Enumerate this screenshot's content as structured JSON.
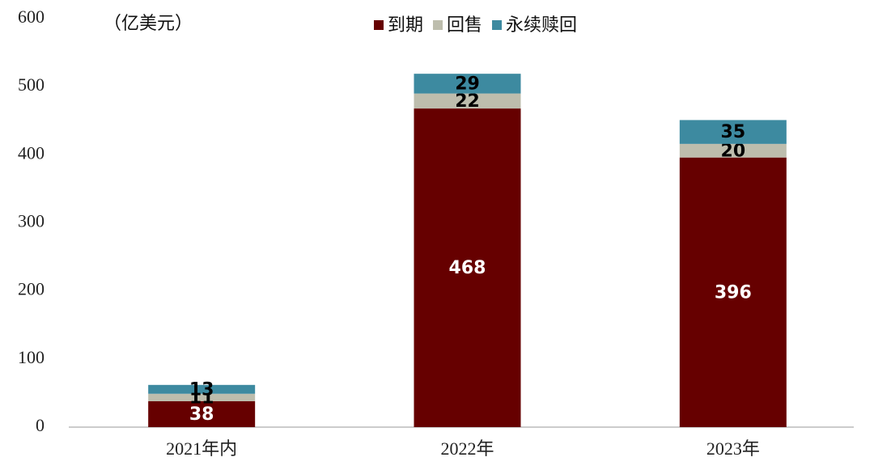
{
  "chart_data": {
    "type": "stacked-bar",
    "unit_label": "（亿美元）",
    "categories": [
      "2021年内",
      "2022年",
      "2023年"
    ],
    "series": [
      {
        "name": "到期",
        "color": "#660000",
        "values": [
          38,
          468,
          396
        ]
      },
      {
        "name": "回售",
        "color": "#bdbdad",
        "values": [
          11,
          22,
          20
        ]
      },
      {
        "name": "永续赎回",
        "color": "#3d8aa0",
        "values": [
          13,
          29,
          35
        ]
      }
    ],
    "ylim": [
      0,
      600
    ],
    "yticks": [
      0,
      100,
      200,
      300,
      400,
      500,
      600
    ],
    "grid": false,
    "legend": "top"
  }
}
